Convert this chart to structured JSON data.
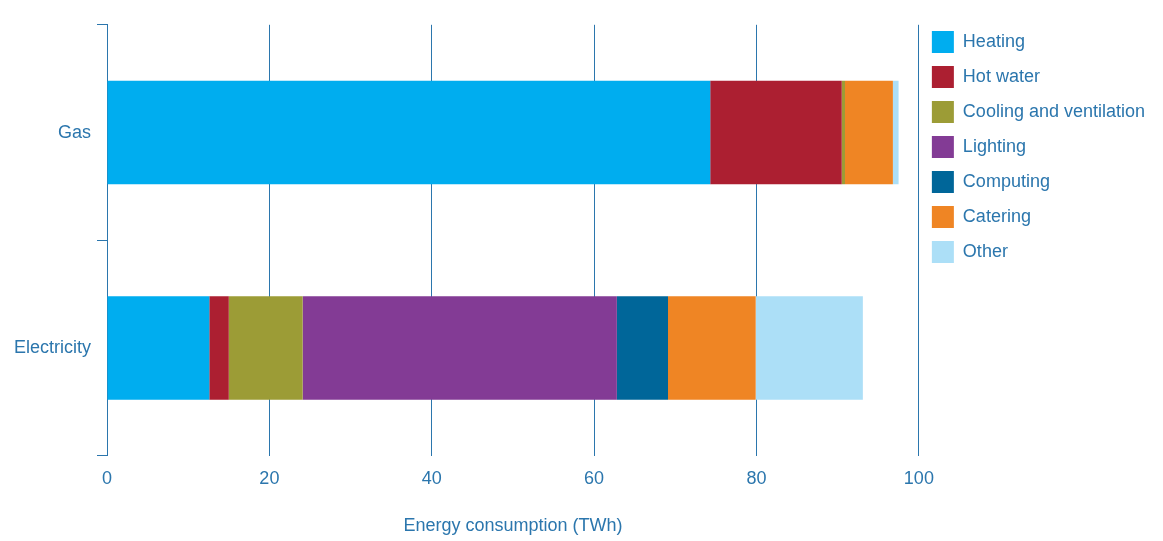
{
  "chart_data": {
    "type": "bar",
    "orientation": "horizontal",
    "stacked": true,
    "xlabel": "Energy consumption (TWh)",
    "categories": [
      "Gas",
      "Electricity"
    ],
    "series": [
      {
        "name": "Heating",
        "color": "#00adef",
        "values": [
          74.3,
          12.6
        ]
      },
      {
        "name": "Hot water",
        "color": "#ac1f31",
        "values": [
          16.2,
          2.4
        ]
      },
      {
        "name": "Cooling and ventilation",
        "color": "#9c9c36",
        "values": [
          0.4,
          9.1
        ]
      },
      {
        "name": "Lighting",
        "color": "#833b95",
        "values": [
          0,
          38.7
        ]
      },
      {
        "name": "Computing",
        "color": "#006699",
        "values": [
          0,
          6.3
        ]
      },
      {
        "name": "Catering",
        "color": "#ef8524",
        "values": [
          5.9,
          10.8
        ]
      },
      {
        "name": "Other",
        "color": "#acdff7",
        "values": [
          0.7,
          13.2
        ]
      }
    ],
    "xlim": [
      0,
      100
    ],
    "xticks": [
      0,
      20,
      40,
      60,
      80,
      100
    ],
    "grid": "x",
    "legend": "right"
  }
}
